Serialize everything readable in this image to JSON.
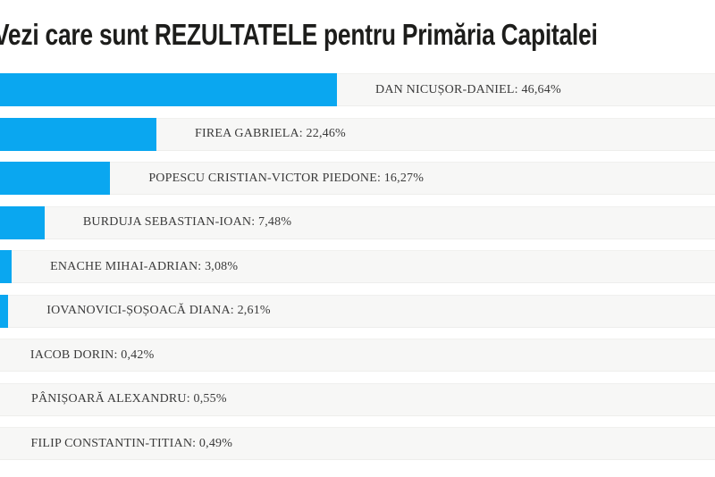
{
  "page": {
    "language": "ro"
  },
  "chart_data": {
    "type": "bar",
    "orientation": "horizontal",
    "title": "Vezi care sunt REZULTATELE pentru Primăria Capitalei",
    "categories": [
      "DAN NICUȘOR-DANIEL",
      "FIREA GABRIELA",
      "POPESCU CRISTIAN-VICTOR PIEDONE",
      "BURDUJA SEBASTIAN-IOAN",
      "ENACHE MIHAI-ADRIAN",
      "IOVANOVICI-ȘOȘOACĂ DIANA",
      "IACOB DORIN",
      "PÂNIȘOARĂ ALEXANDRU",
      "FILIP CONSTANTIN-TITIAN"
    ],
    "values": [
      46.64,
      22.46,
      16.27,
      7.48,
      3.08,
      2.61,
      0.42,
      0.55,
      0.49
    ],
    "value_labels": [
      "46,64%",
      "22,46%",
      "16,27%",
      "7,48%",
      "3,08%",
      "2,61%",
      "0,42%",
      "0,55%",
      "0,49%"
    ],
    "label_separator": ": ",
    "xlim": [
      0,
      100
    ],
    "grid": "off",
    "legend": "none",
    "bar_color": "#0aa7f0",
    "row_background": "#f7f7f6",
    "title_color": "#1d1d1b",
    "label_color": "#3a3a3a"
  }
}
